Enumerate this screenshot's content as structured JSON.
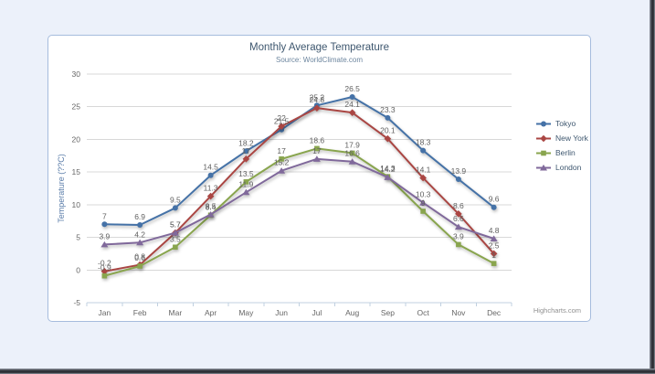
{
  "chart_data": {
    "type": "line",
    "title": "Monthly Average Temperature",
    "subtitle": "Source: WorldClimate.com",
    "categories": [
      "Jan",
      "Feb",
      "Mar",
      "Apr",
      "May",
      "Jun",
      "Jul",
      "Aug",
      "Sep",
      "Oct",
      "Nov",
      "Dec"
    ],
    "xlabel": "",
    "ylabel": "Temperature (??C)",
    "ylim": [
      -5,
      30
    ],
    "ytick_step": 5,
    "grid": true,
    "legend_position": "right",
    "data_labels": true,
    "series": [
      {
        "name": "Tokyo",
        "color": "#4572A7",
        "marker": "circle",
        "values": [
          7,
          6.9,
          9.5,
          14.5,
          18.2,
          21.5,
          25.2,
          26.5,
          23.3,
          18.3,
          13.9,
          9.6
        ]
      },
      {
        "name": "New York",
        "color": "#AA4643",
        "marker": "diamond",
        "values": [
          -0.2,
          0.8,
          5.7,
          11.3,
          17,
          22,
          24.8,
          24.1,
          20.1,
          14.1,
          8.6,
          2.5
        ]
      },
      {
        "name": "Berlin",
        "color": "#89A54E",
        "marker": "square",
        "values": [
          -0.9,
          0.6,
          3.5,
          8.4,
          13.5,
          17,
          18.6,
          17.9,
          14.3,
          9,
          3.9,
          1
        ]
      },
      {
        "name": "London",
        "color": "#80699B",
        "marker": "triangle",
        "values": [
          3.9,
          4.2,
          5.7,
          8.5,
          11.9,
          15.2,
          17,
          16.6,
          14.2,
          10.3,
          6.6,
          4.8
        ]
      }
    ],
    "credit": "Highcharts.com"
  },
  "theme": {
    "background": "#ECF1FA",
    "panel_border": "#A6BCDD",
    "title_color": "#3E576F",
    "subtitle_color": "#6D869F",
    "axis_label_color": "#666666",
    "axis_title_color": "#5B7DA9",
    "grid_color": "#D8D8D8",
    "axis_line_color": "#C0D0E0",
    "data_label_color": "#606060",
    "legend_text_color": "#3E576F",
    "credit_color": "#909090"
  }
}
